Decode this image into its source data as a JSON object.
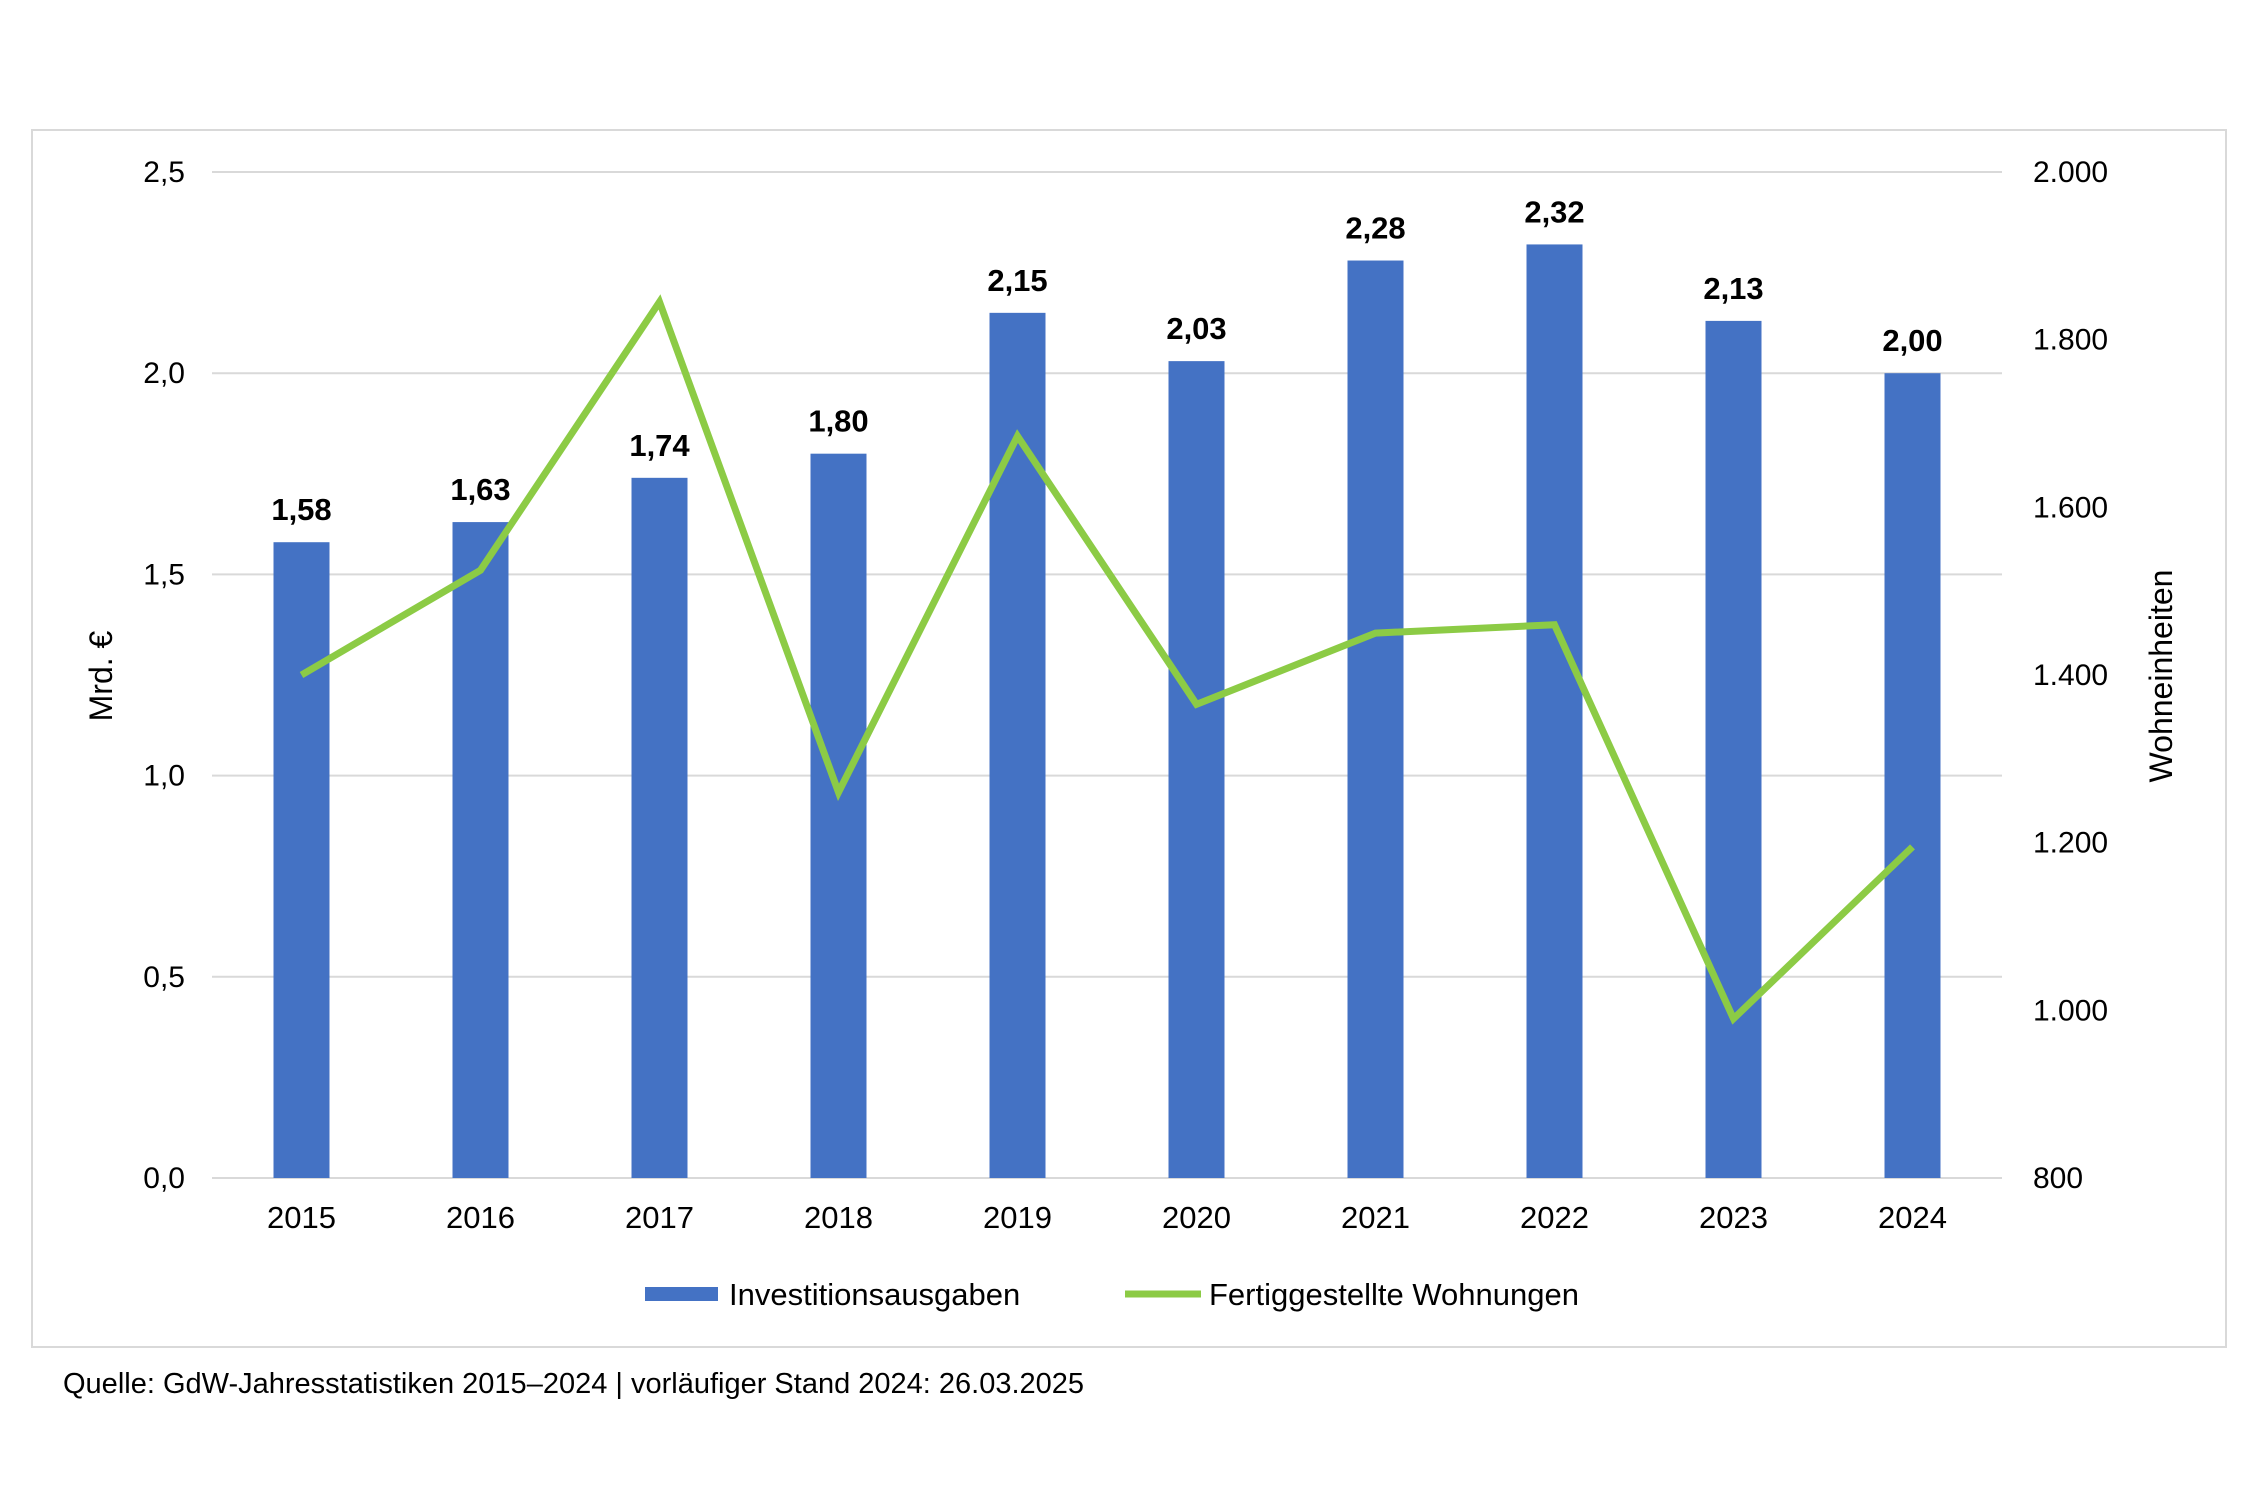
{
  "chart_data": {
    "type": "bar+line",
    "categories": [
      "2015",
      "2016",
      "2017",
      "2018",
      "2019",
      "2020",
      "2021",
      "2022",
      "2023",
      "2024"
    ],
    "series": [
      {
        "name": "Investitionsausgaben",
        "type": "bar",
        "axis": "left",
        "color": "#4472C4",
        "values": [
          1.58,
          1.63,
          1.74,
          1.8,
          2.15,
          2.03,
          2.28,
          2.32,
          2.13,
          2.0
        ],
        "labels": [
          "1,58",
          "1,63",
          "1,74",
          "1,80",
          "2,15",
          "2,03",
          "2,28",
          "2,32",
          "2,13",
          "2,00"
        ]
      },
      {
        "name": "Fertiggestellte Wohnungen",
        "type": "line",
        "axis": "right",
        "color": "#8CCB45",
        "values": [
          1400,
          1525,
          1845,
          1260,
          1685,
          1365,
          1450,
          1460,
          990,
          1195
        ]
      }
    ],
    "y_left": {
      "label": "Mrd. €",
      "min": 0,
      "max": 2.5,
      "ticks": [
        0,
        0.5,
        1.0,
        1.5,
        2.0,
        2.5
      ],
      "tick_labels": [
        "0,0",
        "0,5",
        "1,0",
        "1,5",
        "2,0",
        "2,5"
      ]
    },
    "y_right": {
      "label": "Wohneinheiten",
      "min": 800,
      "max": 2000,
      "ticks": [
        800,
        1000,
        1200,
        1400,
        1600,
        1800,
        2000
      ],
      "tick_labels": [
        "800",
        "1.000",
        "1.200",
        "1.400",
        "1.600",
        "1.800",
        "2.000"
      ]
    },
    "grid": true,
    "legend": "bottom-center"
  },
  "source_note": "Quelle: GdW-Jahresstatistiken 2015–2024 | vorläufiger Stand 2024: 26.03.2025",
  "colors": {
    "gridline": "#d9d9d9",
    "text": "#000000"
  }
}
